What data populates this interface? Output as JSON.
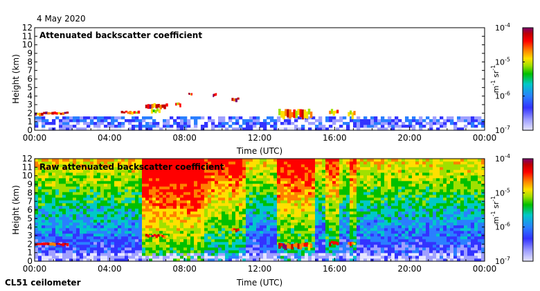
{
  "header": {
    "date": "4 May 2020"
  },
  "footer": {
    "instrument": "CL51 ceilometer"
  },
  "colors": {
    "scale": [
      "#e6e6ff",
      "#a0a0ff",
      "#3333ff",
      "#2a7fff",
      "#00c8c8",
      "#00c000",
      "#a0e000",
      "#ffe000",
      "#ff8000",
      "#ff0000",
      "#c00000",
      "#7a0070"
    ]
  },
  "chart_data": [
    {
      "type": "heatmap",
      "title": "Attenuated backscatter coefficient",
      "xlabel": "Time (UTC)",
      "ylabel": "Height (km)",
      "x_ticks": [
        "00:00",
        "04:00",
        "08:00",
        "12:00",
        "16:00",
        "20:00",
        "00:00"
      ],
      "y_ticks": [
        "0",
        "1",
        "2",
        "3",
        "4",
        "5",
        "6",
        "7",
        "8",
        "9",
        "10",
        "11",
        "12"
      ],
      "ylim": [
        0,
        12
      ],
      "xlim_hours": [
        0,
        24
      ],
      "colorbar": {
        "label_main": "m",
        "label_exp1": "-1",
        "label_mid": " sr",
        "label_exp2": "-1",
        "ticks": [
          {
            "base": "10",
            "exp": "-4",
            "value": -4
          },
          {
            "base": "10",
            "exp": "-5",
            "value": -5
          },
          {
            "base": "10",
            "exp": "-6",
            "value": -6
          },
          {
            "base": "10",
            "exp": "-7",
            "value": -7
          }
        ],
        "range_log10": [
          -7,
          -4
        ]
      },
      "features": [
        {
          "t0": 0.0,
          "t1": 1.8,
          "h0": 1.8,
          "h1": 2.2,
          "level": 9
        },
        {
          "t0": 4.6,
          "t1": 5.6,
          "h0": 1.9,
          "h1": 2.3,
          "level": 8
        },
        {
          "t0": 5.9,
          "t1": 7.1,
          "h0": 2.6,
          "h1": 3.2,
          "level": 9
        },
        {
          "t0": 6.2,
          "t1": 6.7,
          "h0": 2.0,
          "h1": 2.6,
          "level": 5
        },
        {
          "t0": 7.5,
          "t1": 7.8,
          "h0": 2.8,
          "h1": 3.3,
          "level": 8
        },
        {
          "t0": 8.2,
          "t1": 8.4,
          "h0": 4.1,
          "h1": 4.4,
          "level": 9
        },
        {
          "t0": 9.5,
          "t1": 9.7,
          "h0": 4.0,
          "h1": 4.4,
          "level": 9
        },
        {
          "t0": 10.5,
          "t1": 10.9,
          "h0": 3.4,
          "h1": 3.9,
          "level": 9
        },
        {
          "t0": 13.0,
          "t1": 14.8,
          "h0": 1.4,
          "h1": 2.6,
          "level": 8
        },
        {
          "t0": 15.7,
          "t1": 16.2,
          "h0": 1.9,
          "h1": 2.5,
          "level": 8
        },
        {
          "t0": 16.7,
          "t1": 17.1,
          "h0": 1.5,
          "h1": 2.4,
          "level": 8
        }
      ]
    },
    {
      "type": "heatmap",
      "title": "Raw attenuated backscatter coefficient",
      "xlabel": "Time (UTC)",
      "ylabel": "Height (km)",
      "x_ticks": [
        "00:00",
        "04:00",
        "08:00",
        "12:00",
        "16:00",
        "20:00",
        "00:00"
      ],
      "y_ticks": [
        "0",
        "1",
        "2",
        "3",
        "4",
        "5",
        "6",
        "7",
        "8",
        "9",
        "10",
        "11",
        "12"
      ],
      "ylim": [
        0,
        12
      ],
      "xlim_hours": [
        0,
        24
      ],
      "colorbar": {
        "label_main": "m",
        "label_exp1": "-1",
        "label_mid": " sr",
        "label_exp2": "-1",
        "ticks": [
          {
            "base": "10",
            "exp": "-4",
            "value": -4
          },
          {
            "base": "10",
            "exp": "-5",
            "value": -5
          },
          {
            "base": "10",
            "exp": "-6",
            "value": -6
          },
          {
            "base": "10",
            "exp": "-7",
            "value": -7
          }
        ],
        "range_log10": [
          -7,
          -4
        ]
      },
      "noisy_periods": [
        {
          "t0": 5.8,
          "t1": 9.0,
          "boost": 3.5
        },
        {
          "t0": 9.0,
          "t1": 11.0,
          "boost": 2.2
        },
        {
          "t0": 11.0,
          "t1": 11.3,
          "boost": 2.0
        },
        {
          "t0": 12.9,
          "t1": 15.0,
          "boost": 2.5
        },
        {
          "t0": 15.6,
          "t1": 16.2,
          "boost": 2.0
        },
        {
          "t0": 16.8,
          "t1": 17.2,
          "boost": 1.8
        }
      ],
      "features": [
        {
          "t0": 0.0,
          "t1": 1.8,
          "h0": 1.8,
          "h1": 2.2,
          "level": 9
        },
        {
          "t0": 5.9,
          "t1": 7.1,
          "h0": 2.8,
          "h1": 3.2,
          "level": 9
        },
        {
          "t0": 10.5,
          "t1": 10.9,
          "h0": 3.5,
          "h1": 3.9,
          "level": 9
        },
        {
          "t0": 13.0,
          "t1": 14.8,
          "h0": 1.5,
          "h1": 2.2,
          "level": 9
        },
        {
          "t0": 15.7,
          "t1": 16.2,
          "h0": 1.9,
          "h1": 2.4,
          "level": 9
        },
        {
          "t0": 16.7,
          "t1": 17.1,
          "h0": 1.8,
          "h1": 2.3,
          "level": 9
        }
      ]
    }
  ]
}
